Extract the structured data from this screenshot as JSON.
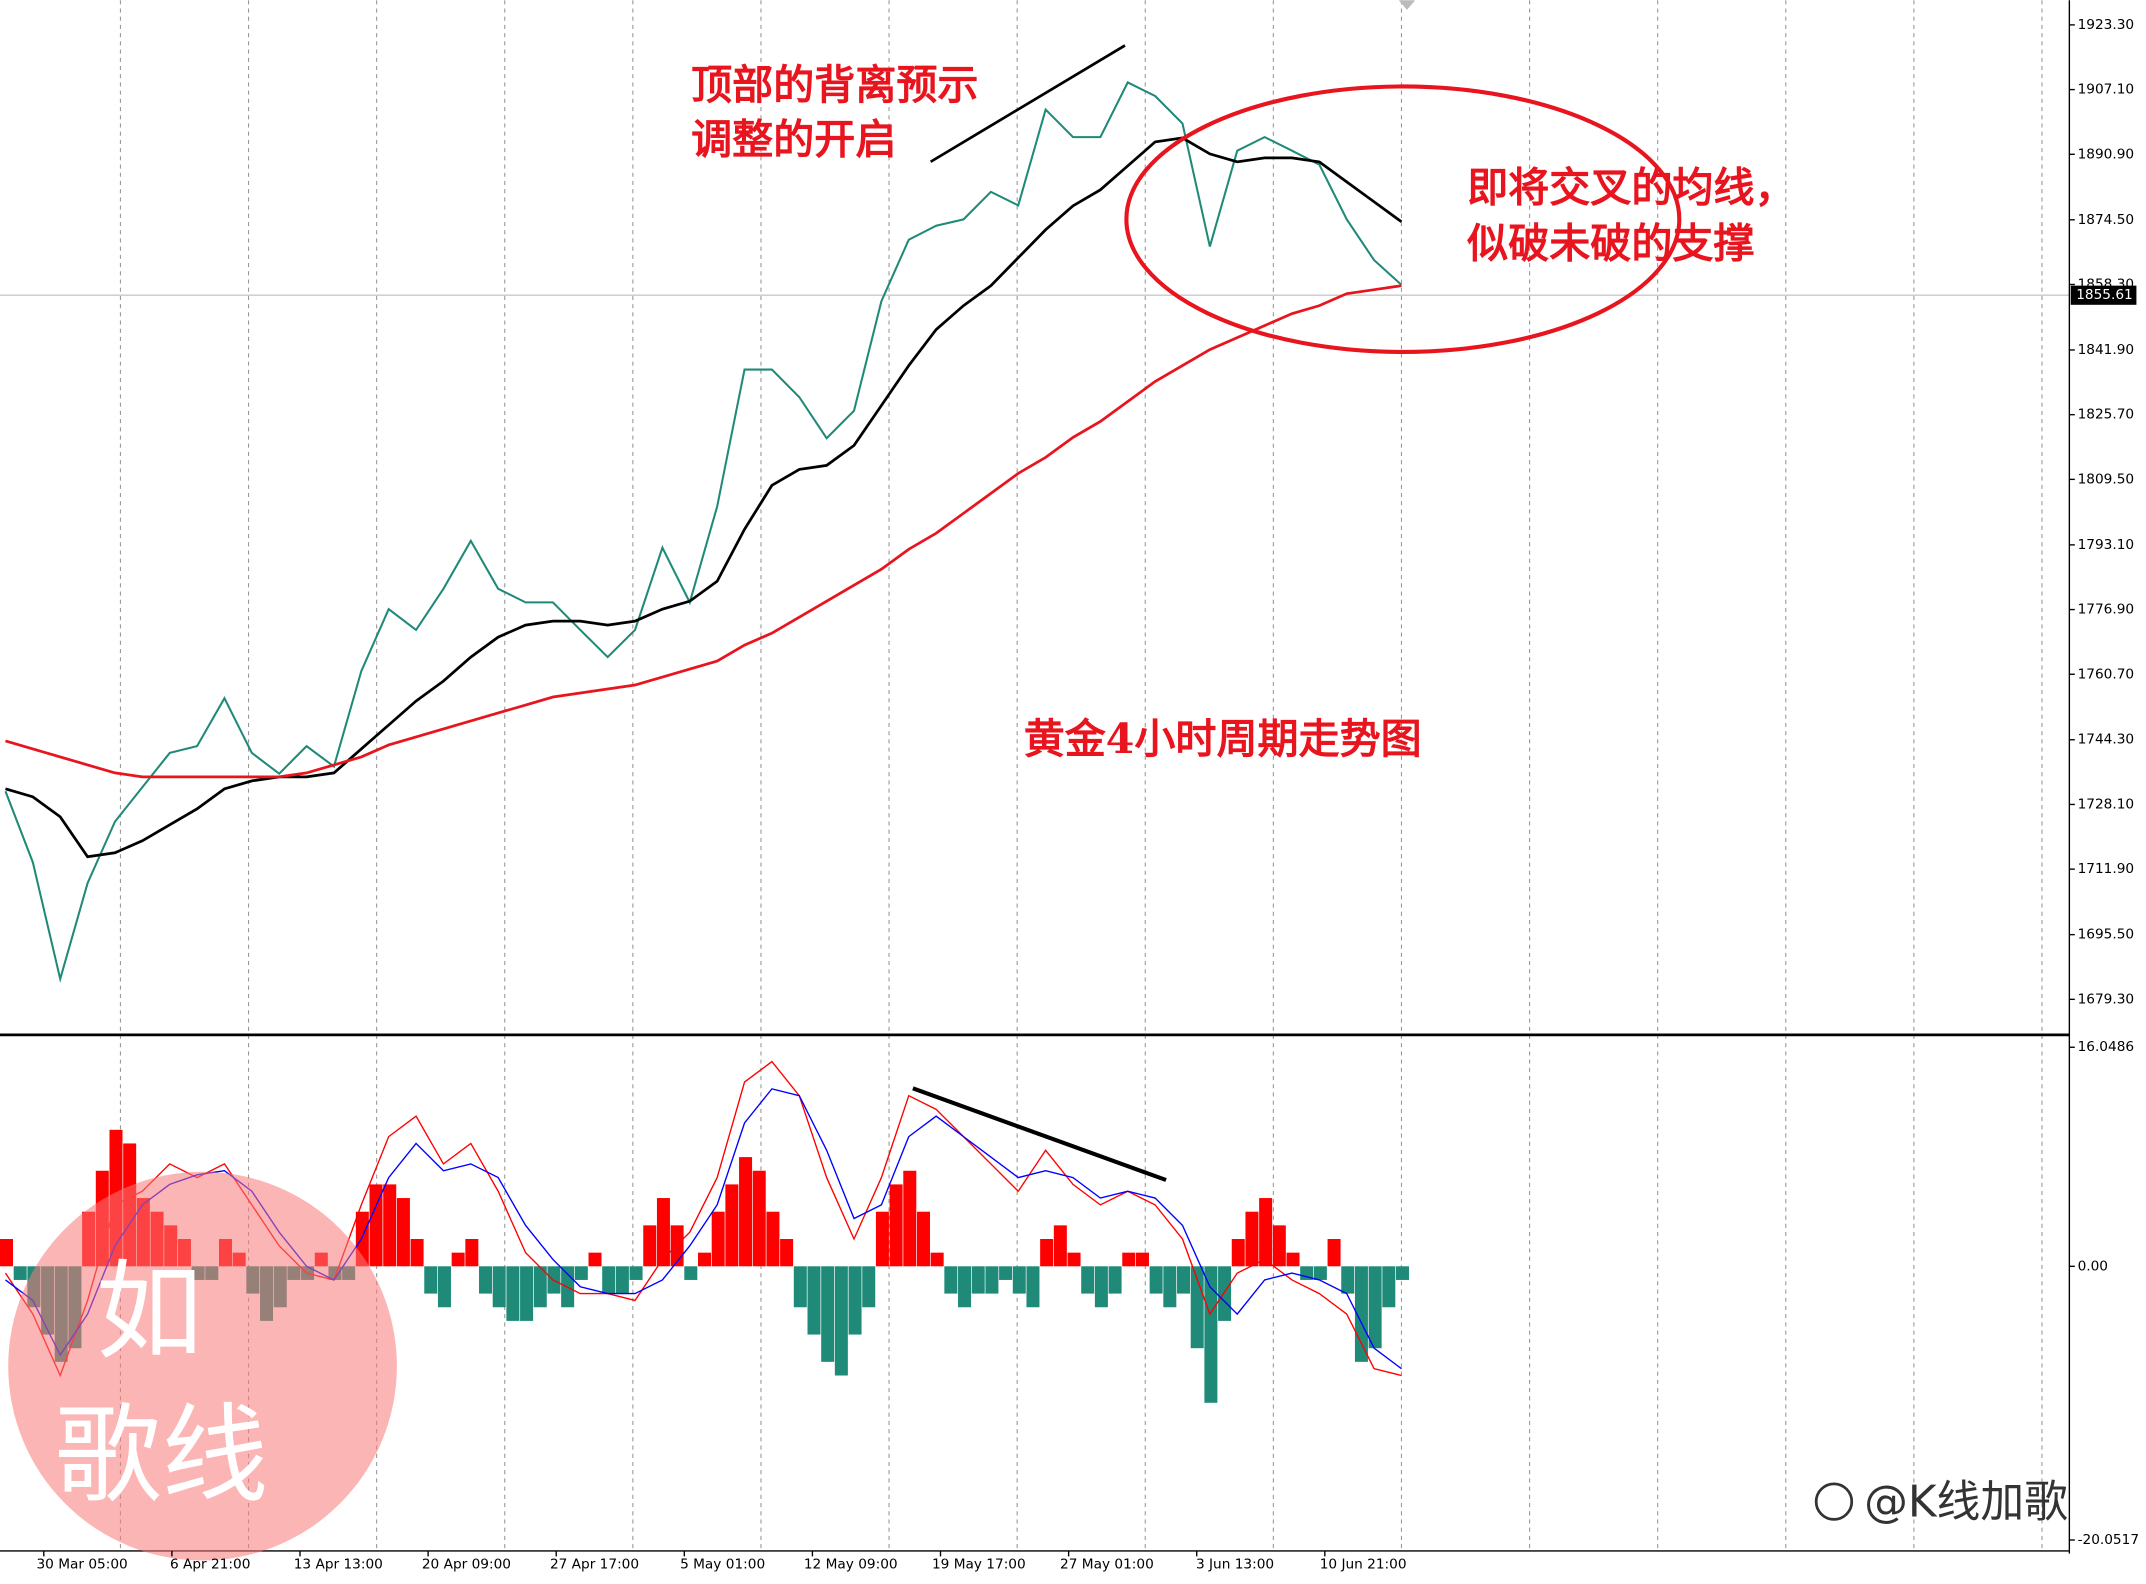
{
  "chart_data": [
    {
      "type": "line",
      "ylim": [
        1670.73,
        1929.47
      ],
      "yticks": [
        {
          "value": 1923.3,
          "label": "1923.30"
        },
        {
          "value": 1907.1,
          "label": "1907.10"
        },
        {
          "value": 1890.9,
          "label": "1890.90"
        },
        {
          "value": 1874.5,
          "label": "1874.50"
        },
        {
          "value": 1858.3,
          "label": "1858.30"
        },
        {
          "value": 1841.9,
          "label": "1841.90"
        },
        {
          "value": 1825.7,
          "label": "1825.70"
        },
        {
          "value": 1809.5,
          "label": "1809.50"
        },
        {
          "value": 1793.1,
          "label": "1793.10"
        },
        {
          "value": 1776.9,
          "label": "1776.90"
        },
        {
          "value": 1760.7,
          "label": "1760.70"
        },
        {
          "value": 1744.3,
          "label": "1744.30"
        },
        {
          "value": 1728.1,
          "label": "1728.10"
        },
        {
          "value": 1711.9,
          "label": "1711.90"
        },
        {
          "value": 1695.5,
          "label": "1695.50"
        },
        {
          "value": 1679.3,
          "label": "1679.30"
        }
      ],
      "grid": "x",
      "last_price": 1855.61,
      "series": [
        {
          "color": "#1f8a78",
          "values": [
            1731.4,
            1713.6,
            1684.4,
            1708.4,
            1723.8,
            1732.4,
            1741.0,
            1742.7,
            1754.7,
            1741.0,
            1735.8,
            1742.7,
            1737.6,
            1761.5,
            1777.0,
            1771.8,
            1782.1,
            1794.1,
            1782.1,
            1778.7,
            1778.7,
            1771.8,
            1765.0,
            1771.8,
            1792.4,
            1778.7,
            1802.7,
            1837.0,
            1837.0,
            1830.1,
            1819.8,
            1826.7,
            1854.1,
            1869.5,
            1873.0,
            1874.6,
            1881.5,
            1878.1,
            1902.1,
            1895.2,
            1895.2,
            1908.9,
            1905.5,
            1898.6,
            1867.8,
            1891.8,
            1895.2,
            1891.8,
            1888.3,
            1874.6,
            1864.4,
            1858.2
          ]
        },
        {
          "color": "#000000",
          "values": [
            1732,
            1730,
            1725,
            1715,
            1716,
            1719,
            1723,
            1727,
            1732,
            1734,
            1735,
            1735,
            1736,
            1742,
            1748,
            1754,
            1759,
            1765,
            1770,
            1773,
            1774,
            1774,
            1773,
            1774,
            1777,
            1779,
            1784,
            1797,
            1808,
            1812,
            1813,
            1818,
            1828,
            1838,
            1847,
            1853,
            1858,
            1865,
            1872,
            1878,
            1882,
            1888,
            1894,
            1895,
            1891,
            1889,
            1890,
            1890,
            1889,
            1884,
            1879,
            1874
          ]
        },
        {
          "color": "#e8141e",
          "values": [
            1744,
            1742,
            1740,
            1738,
            1736,
            1735,
            1735,
            1735,
            1735,
            1735,
            1735,
            1736,
            1738,
            1740,
            1743,
            1745,
            1747,
            1749,
            1751,
            1753,
            1755,
            1756,
            1757,
            1758,
            1760,
            1762,
            1764,
            1768,
            1771,
            1775,
            1779,
            1783,
            1787,
            1792,
            1796,
            1801,
            1806,
            1811,
            1815,
            1820,
            1824,
            1829,
            1834,
            1838,
            1842,
            1845,
            1848,
            1851,
            1853,
            1856,
            1857,
            1858
          ]
        }
      ],
      "annotations": [
        "顶部的背离预示",
        "调整的开启",
        "即将交叉的均线，",
        "似破未破的支撑",
        "黄金4小时周期走势图"
      ]
    },
    {
      "type": "bar",
      "ylim": [
        -20.75,
        16.85
      ],
      "yticks": [
        16.0486,
        {
          "value": 0,
          "label": "0.00"
        },
        -20.0517
      ],
      "positive_color": "#ff0000",
      "negative_color": "#1f8a78",
      "values": [
        2,
        -1,
        -3,
        -5,
        -7,
        -6,
        4,
        7,
        10,
        9,
        5,
        4,
        3,
        2,
        -1,
        -1,
        2,
        1,
        -2,
        -4,
        -3,
        -1,
        -1,
        1,
        -1,
        -1,
        4,
        6,
        6,
        5,
        2,
        -2,
        -3,
        1,
        2,
        -2,
        -3,
        -4,
        -4,
        -3,
        -2,
        -3,
        -1,
        1,
        -2,
        -2,
        -1,
        3,
        5,
        3,
        -1,
        1,
        4,
        6,
        8,
        7,
        4,
        2,
        -3,
        -5,
        -7,
        -8,
        -5,
        -3,
        4,
        6,
        7,
        4,
        1,
        -2,
        -3,
        -2,
        -2,
        -1,
        -2,
        -3,
        2,
        3,
        1,
        -2,
        -3,
        -2,
        1,
        1,
        -2,
        -3,
        -2,
        -6,
        -10,
        -4,
        2,
        4,
        5,
        3,
        1,
        -1,
        -1,
        2,
        -2,
        -7,
        -6,
        -3,
        -1
      ],
      "series": [
        {
          "color": "#ff0000",
          "values": [
            -0.5,
            -3.5,
            -8,
            -2.5,
            4.5,
            5.5,
            7.5,
            6.5,
            7.5,
            4.5,
            1.5,
            -0.5,
            -1,
            4.5,
            9.5,
            11,
            7.5,
            9,
            5.5,
            1,
            -1,
            -2,
            -2,
            -2.5,
            0.5,
            2.5,
            6.5,
            13.5,
            15,
            12.5,
            6.5,
            2,
            6.5,
            12.5,
            11.5,
            9.5,
            7.5,
            5.5,
            8.5,
            6,
            4.5,
            5.5,
            4.5,
            2,
            -3.5,
            -0.5,
            0.5,
            -1,
            -2,
            -3.5,
            -7.5,
            -8
          ]
        },
        {
          "color": "#0000ff",
          "values": [
            -1,
            -2.5,
            -6.5,
            -3.5,
            1.5,
            4.5,
            6,
            6.7,
            7,
            5.5,
            2.5,
            0,
            -1,
            2,
            6.5,
            9,
            7,
            7.5,
            6.5,
            3,
            0.5,
            -1.5,
            -2,
            -2,
            -1,
            1.5,
            4.5,
            10.5,
            13,
            12.5,
            8.5,
            3.5,
            4.5,
            9.5,
            11,
            9.5,
            8,
            6.5,
            7,
            6.5,
            5,
            5.5,
            5,
            3,
            -1.5,
            -3.5,
            -1,
            -0.5,
            -1,
            -2,
            -6,
            -7.5
          ]
        }
      ],
      "xtick_labels": [
        "30 Mar 05:00",
        "6 Apr 21:00",
        "13 Apr 13:00",
        "20 Apr 09:00",
        "27 Apr 17:00",
        "5 May 01:00",
        "12 May 09:00",
        "19 May 17:00",
        "27 May 01:00",
        "3 Jun 13:00",
        "10 Jun 21:00"
      ]
    }
  ],
  "stamp": [
    "如",
    "歌线"
  ],
  "watermark": "@K线加歌"
}
